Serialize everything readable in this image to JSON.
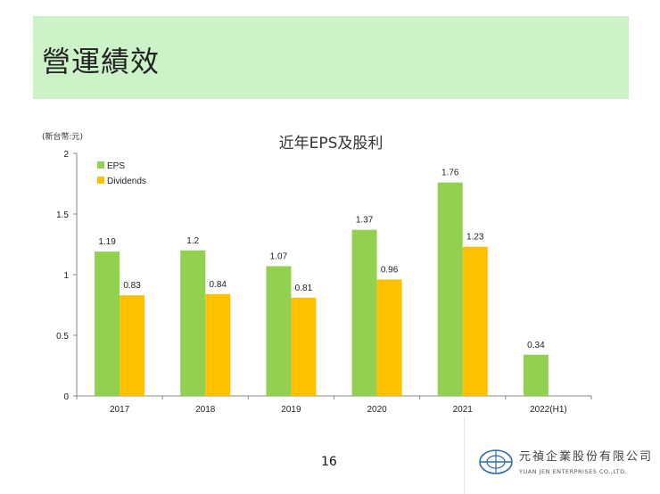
{
  "slide": {
    "title": "營運績效",
    "unit_label": "(新台幣:元)",
    "page_number": "16"
  },
  "company": {
    "name_zh": "元禎企業股份有限公司",
    "name_en": "YUAN JEN ENTERPRISES CO.,LTD."
  },
  "colors": {
    "title_bg": "#ccf2c8",
    "eps": "#92d050",
    "dividends": "#ffc000"
  },
  "chart_data": {
    "type": "bar",
    "title": "近年EPS及股利",
    "categories": [
      "2017",
      "2018",
      "2019",
      "2020",
      "2021",
      "2022(H1)"
    ],
    "series": [
      {
        "name": "EPS",
        "values": [
          1.19,
          1.2,
          1.07,
          1.37,
          1.76,
          0.34
        ],
        "labels": [
          "1.19",
          "1.2",
          "1.07",
          "1.37",
          "1.76",
          "0.34"
        ]
      },
      {
        "name": "Dividends",
        "values": [
          0.83,
          0.84,
          0.81,
          0.96,
          1.23,
          null
        ],
        "labels": [
          "0.83",
          "0.84",
          "0.81",
          "0.96",
          "1.23",
          null
        ]
      }
    ],
    "ylim": [
      0,
      2
    ],
    "yticks": [
      "0",
      "0.5",
      "1",
      "1.5",
      "2"
    ],
    "grid": false,
    "legend": "top-left"
  }
}
